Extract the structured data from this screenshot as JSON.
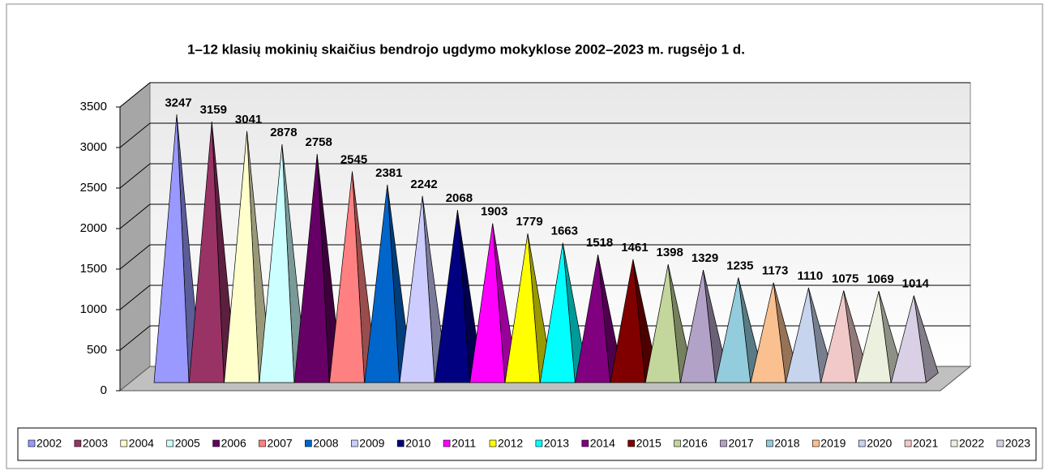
{
  "chart_data": {
    "type": "pyramid",
    "title": "1–12 klasių mokinių skaičius bendrojo ugdymo mokyklose 2002–2023 m. rugsėjo 1 d.",
    "categories": [
      "2002",
      "2003",
      "2004",
      "2005",
      "2006",
      "2007",
      "2008",
      "2009",
      "2010",
      "2011",
      "2012",
      "2013",
      "2014",
      "2015",
      "2016",
      "2017",
      "2018",
      "2019",
      "2020",
      "2021",
      "2022",
      "2023"
    ],
    "values": [
      3247,
      3159,
      3041,
      2878,
      2758,
      2545,
      2381,
      2242,
      2068,
      1903,
      1779,
      1663,
      1518,
      1461,
      1398,
      1329,
      1235,
      1173,
      1110,
      1075,
      1069,
      1014
    ],
    "colors": [
      "#9999ff",
      "#993366",
      "#ffffcc",
      "#ccffff",
      "#660066",
      "#ff8080",
      "#0066cc",
      "#ccccff",
      "#000080",
      "#ff00ff",
      "#ffff00",
      "#00ffff",
      "#800080",
      "#800000",
      "#c3d69b",
      "#b3a2c7",
      "#93cddd",
      "#fac090",
      "#c6d4ee",
      "#f2c9c9",
      "#ebf1de",
      "#d9d0e5"
    ],
    "ylim": [
      0,
      3500
    ],
    "yticks": [
      0,
      500,
      1000,
      1500,
      2000,
      2500,
      3000,
      3500
    ],
    "grid": true,
    "legend": "bottom"
  }
}
